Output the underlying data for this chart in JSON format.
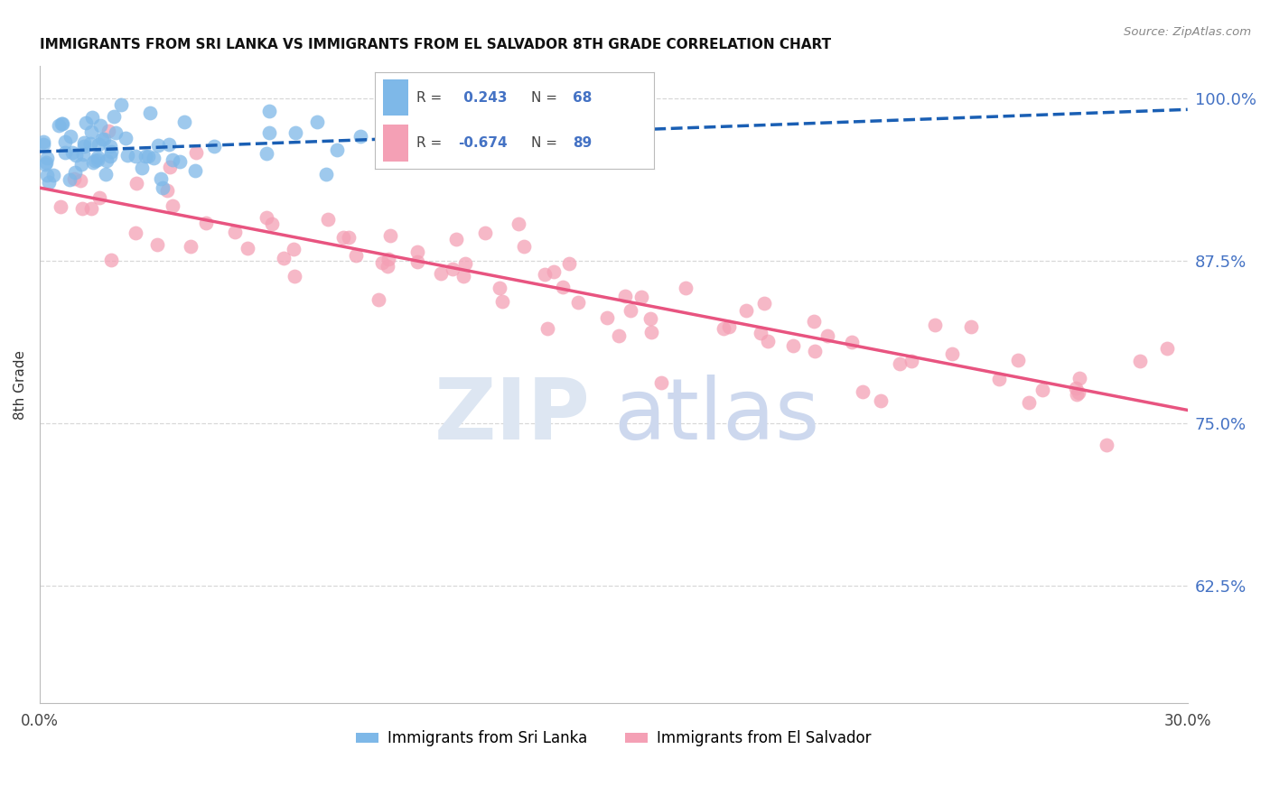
{
  "title": "IMMIGRANTS FROM SRI LANKA VS IMMIGRANTS FROM EL SALVADOR 8TH GRADE CORRELATION CHART",
  "source": "Source: ZipAtlas.com",
  "ylabel": "8th Grade",
  "ylabel_ticks": [
    0.625,
    0.75,
    0.875,
    1.0
  ],
  "ylabel_tick_labels": [
    "62.5%",
    "75.0%",
    "87.5%",
    "100.0%"
  ],
  "xlim": [
    0.0,
    0.3
  ],
  "ylim": [
    0.535,
    1.025
  ],
  "sri_lanka_R": 0.243,
  "sri_lanka_N": 68,
  "el_salvador_R": -0.674,
  "el_salvador_N": 89,
  "sri_lanka_color": "#7EB8E8",
  "el_salvador_color": "#F4A0B5",
  "sri_lanka_line_color": "#1A5FB4",
  "el_salvador_line_color": "#E85480",
  "watermark_color": "#E4EBF5",
  "background_color": "#FFFFFF",
  "grid_color": "#D8D8D8",
  "axis_tick_color": "#4472C4",
  "legend_label_sl": "Immigrants from Sri Lanka",
  "legend_label_es": "Immigrants from El Salvador"
}
